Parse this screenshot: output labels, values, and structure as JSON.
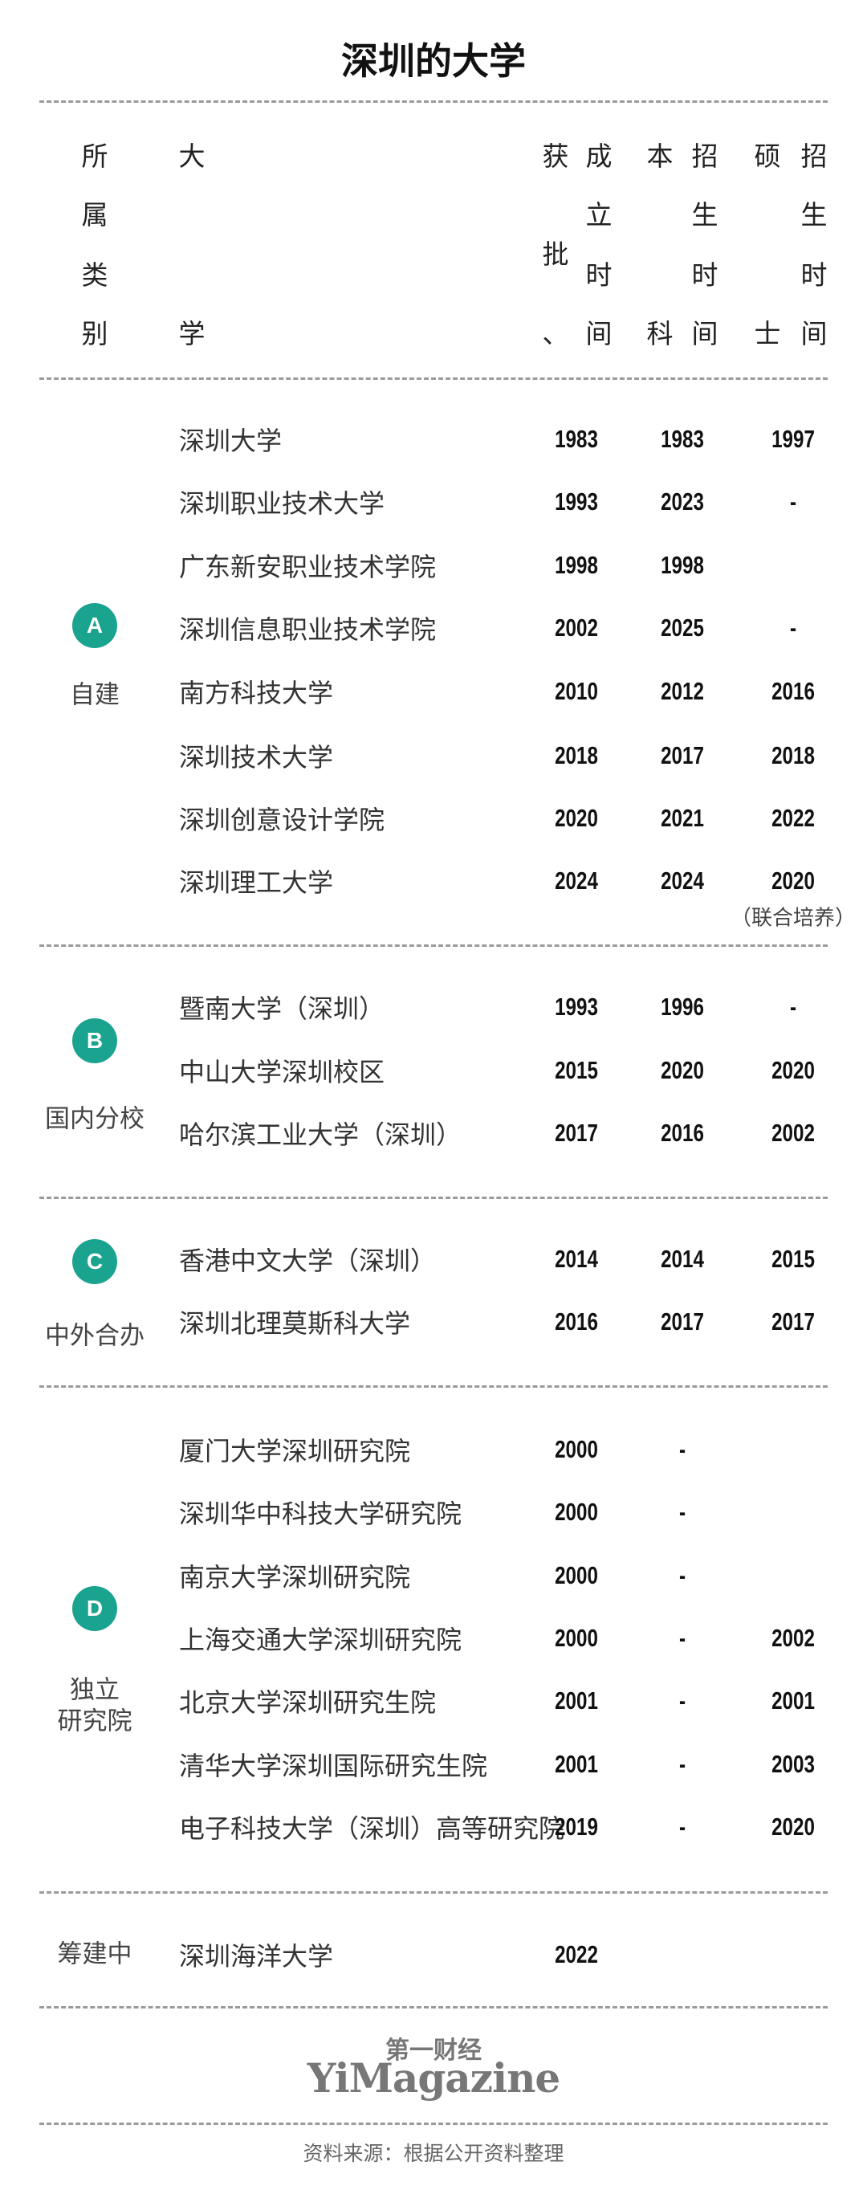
{
  "title": "深圳的大学",
  "header": {
    "category": [
      "所",
      "属",
      "类",
      "别"
    ],
    "university": [
      "大",
      "学"
    ],
    "approved": [
      "获",
      "批",
      "、"
    ],
    "founded": [
      "成",
      "立",
      "时",
      "间"
    ],
    "undergrad": [
      "本",
      "科"
    ],
    "undergrad_time": [
      "招",
      "生",
      "时",
      "间"
    ],
    "master": [
      "硕",
      "士"
    ],
    "master_time": [
      "招",
      "生",
      "时",
      "间"
    ]
  },
  "accent_color": "#1aa38f",
  "groups": [
    {
      "badge": "A",
      "label": "自建",
      "rows": [
        {
          "name": "深圳大学",
          "founded": "1983",
          "undergrad": "1983",
          "master": "1997"
        },
        {
          "name": "深圳职业技术大学",
          "founded": "1993",
          "undergrad": "2023",
          "master": "-"
        },
        {
          "name": "广东新安职业技术学院",
          "founded": "1998",
          "undergrad": "1998",
          "master": ""
        },
        {
          "name": "深圳信息职业技术学院",
          "founded": "2002",
          "undergrad": "2025",
          "master": "-"
        },
        {
          "name": "南方科技大学",
          "founded": "2010",
          "undergrad": "2012",
          "master": "2016"
        },
        {
          "name": "深圳技术大学",
          "founded": "2018",
          "undergrad": "2017",
          "master": "2018"
        },
        {
          "name": "深圳创意设计学院",
          "founded": "2020",
          "undergrad": "2021",
          "master": "2022"
        },
        {
          "name": "深圳理工大学",
          "founded": "2024",
          "undergrad": "2024",
          "master": "2020",
          "master_note": "（联合培养）"
        }
      ]
    },
    {
      "badge": "B",
      "label": "国内分校",
      "rows": [
        {
          "name": "暨南大学（深圳）",
          "founded": "1993",
          "undergrad": "1996",
          "master": "-"
        },
        {
          "name": "中山大学深圳校区",
          "founded": "2015",
          "undergrad": "2020",
          "master": "2020"
        },
        {
          "name": "哈尔滨工业大学（深圳）",
          "founded": "2017",
          "undergrad": "2016",
          "master": "2002"
        }
      ]
    },
    {
      "badge": "C",
      "label": "中外合办",
      "rows": [
        {
          "name": "香港中文大学（深圳）",
          "founded": "2014",
          "undergrad": "2014",
          "master": "2015"
        },
        {
          "name": "深圳北理莫斯科大学",
          "founded": "2016",
          "undergrad": "2017",
          "master": "2017"
        }
      ]
    },
    {
      "badge": "D",
      "label": "独立\n研究院",
      "rows": [
        {
          "name": "厦门大学深圳研究院",
          "founded": "2000",
          "undergrad": "-",
          "master": ""
        },
        {
          "name": "深圳华中科技大学研究院",
          "founded": "2000",
          "undergrad": "-",
          "master": ""
        },
        {
          "name": "南京大学深圳研究院",
          "founded": "2000",
          "undergrad": "-",
          "master": ""
        },
        {
          "name": "上海交通大学深圳研究院",
          "founded": "2000",
          "undergrad": "-",
          "master": "2002"
        },
        {
          "name": "北京大学深圳研究生院",
          "founded": "2001",
          "undergrad": "-",
          "master": "2001"
        },
        {
          "name": "清华大学深圳国际研究生院",
          "founded": "2001",
          "undergrad": "-",
          "master": "2003"
        },
        {
          "name": "电子科技大学（深圳）高等研究院",
          "founded": "2019",
          "undergrad": "-",
          "master": "2020"
        }
      ]
    },
    {
      "badge": "",
      "label": "筹建中",
      "rows": [
        {
          "name": "深圳海洋大学",
          "founded": "2022",
          "undergrad": "",
          "master": ""
        }
      ]
    }
  ],
  "logo": {
    "cn": "第一财经",
    "en": "YiMagazine"
  },
  "source": "资料来源：根据公开资料整理"
}
